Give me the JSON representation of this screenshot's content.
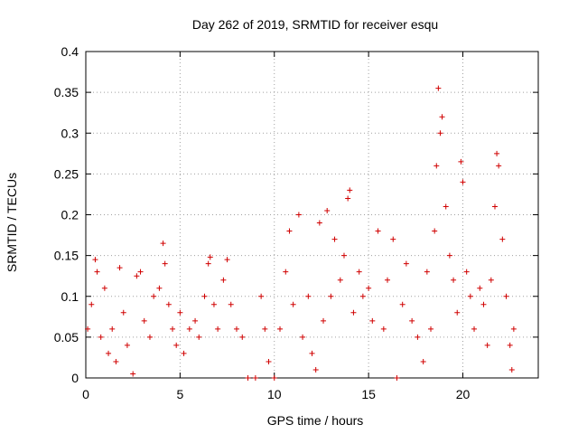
{
  "chart_data": {
    "type": "scatter",
    "title": "Day 262 of 2019, SRMTID for receiver esqu",
    "xlabel": "GPS time / hours",
    "ylabel": "SRMTID / TECUs",
    "xlim": [
      0,
      24
    ],
    "ylim": [
      0,
      0.4
    ],
    "xticks": [
      0,
      5,
      10,
      15,
      20
    ],
    "xtick_labels": [
      "0",
      "5",
      "10",
      "15",
      "20"
    ],
    "yticks": [
      0,
      0.05,
      0.1,
      0.15,
      0.2,
      0.25,
      0.3,
      0.35,
      0.4
    ],
    "ytick_labels": [
      "0",
      "0.05",
      "0.1",
      "0.15",
      "0.2",
      "0.25",
      "0.3",
      "0.35",
      "0.4"
    ],
    "grid": true,
    "marker": "+",
    "color": "#d00000",
    "series": [
      {
        "name": "SRMTID",
        "points": [
          [
            0.1,
            0.06
          ],
          [
            0.3,
            0.09
          ],
          [
            0.5,
            0.145
          ],
          [
            0.6,
            0.13
          ],
          [
            0.8,
            0.05
          ],
          [
            1.0,
            0.11
          ],
          [
            1.2,
            0.03
          ],
          [
            1.4,
            0.06
          ],
          [
            1.6,
            0.02
          ],
          [
            1.8,
            0.135
          ],
          [
            2.0,
            0.08
          ],
          [
            2.2,
            0.04
          ],
          [
            2.5,
            0.005
          ],
          [
            2.7,
            0.125
          ],
          [
            2.9,
            0.13
          ],
          [
            3.1,
            0.07
          ],
          [
            3.4,
            0.05
          ],
          [
            3.6,
            0.1
          ],
          [
            3.9,
            0.11
          ],
          [
            4.1,
            0.165
          ],
          [
            4.2,
            0.14
          ],
          [
            4.4,
            0.09
          ],
          [
            4.6,
            0.06
          ],
          [
            4.8,
            0.04
          ],
          [
            5.0,
            0.08
          ],
          [
            5.2,
            0.03
          ],
          [
            5.5,
            0.06
          ],
          [
            5.8,
            0.07
          ],
          [
            6.0,
            0.05
          ],
          [
            6.3,
            0.1
          ],
          [
            6.5,
            0.14
          ],
          [
            6.6,
            0.148
          ],
          [
            6.8,
            0.09
          ],
          [
            7.0,
            0.06
          ],
          [
            7.3,
            0.12
          ],
          [
            7.5,
            0.145
          ],
          [
            7.7,
            0.09
          ],
          [
            8.0,
            0.06
          ],
          [
            8.3,
            0.05
          ],
          [
            8.6,
            0.0
          ],
          [
            9.0,
            0.0
          ],
          [
            9.3,
            0.1
          ],
          [
            9.5,
            0.06
          ],
          [
            9.7,
            0.02
          ],
          [
            10.0,
            0.0
          ],
          [
            10.3,
            0.06
          ],
          [
            10.6,
            0.13
          ],
          [
            10.8,
            0.18
          ],
          [
            11.0,
            0.09
          ],
          [
            11.3,
            0.2
          ],
          [
            11.5,
            0.05
          ],
          [
            11.8,
            0.1
          ],
          [
            12.0,
            0.03
          ],
          [
            12.2,
            0.01
          ],
          [
            12.4,
            0.19
          ],
          [
            12.6,
            0.07
          ],
          [
            12.8,
            0.205
          ],
          [
            13.0,
            0.1
          ],
          [
            13.2,
            0.17
          ],
          [
            13.5,
            0.12
          ],
          [
            13.7,
            0.15
          ],
          [
            13.9,
            0.22
          ],
          [
            14.0,
            0.23
          ],
          [
            14.2,
            0.08
          ],
          [
            14.5,
            0.13
          ],
          [
            14.7,
            0.1
          ],
          [
            15.0,
            0.11
          ],
          [
            15.2,
            0.07
          ],
          [
            15.5,
            0.18
          ],
          [
            15.8,
            0.06
          ],
          [
            16.0,
            0.12
          ],
          [
            16.3,
            0.17
          ],
          [
            16.5,
            0.0
          ],
          [
            16.8,
            0.09
          ],
          [
            17.0,
            0.14
          ],
          [
            17.3,
            0.07
          ],
          [
            17.6,
            0.05
          ],
          [
            17.9,
            0.02
          ],
          [
            18.1,
            0.13
          ],
          [
            18.3,
            0.06
          ],
          [
            18.5,
            0.18
          ],
          [
            18.6,
            0.26
          ],
          [
            18.7,
            0.355
          ],
          [
            18.8,
            0.3
          ],
          [
            18.9,
            0.32
          ],
          [
            19.1,
            0.21
          ],
          [
            19.3,
            0.15
          ],
          [
            19.5,
            0.12
          ],
          [
            19.7,
            0.08
          ],
          [
            19.9,
            0.265
          ],
          [
            20.0,
            0.24
          ],
          [
            20.2,
            0.13
          ],
          [
            20.4,
            0.1
          ],
          [
            20.6,
            0.06
          ],
          [
            20.9,
            0.11
          ],
          [
            21.1,
            0.09
          ],
          [
            21.3,
            0.04
          ],
          [
            21.5,
            0.12
          ],
          [
            21.7,
            0.21
          ],
          [
            21.8,
            0.275
          ],
          [
            21.9,
            0.26
          ],
          [
            22.1,
            0.17
          ],
          [
            22.3,
            0.1
          ],
          [
            22.5,
            0.04
          ],
          [
            22.6,
            0.01
          ],
          [
            22.7,
            0.06
          ]
        ]
      }
    ]
  }
}
